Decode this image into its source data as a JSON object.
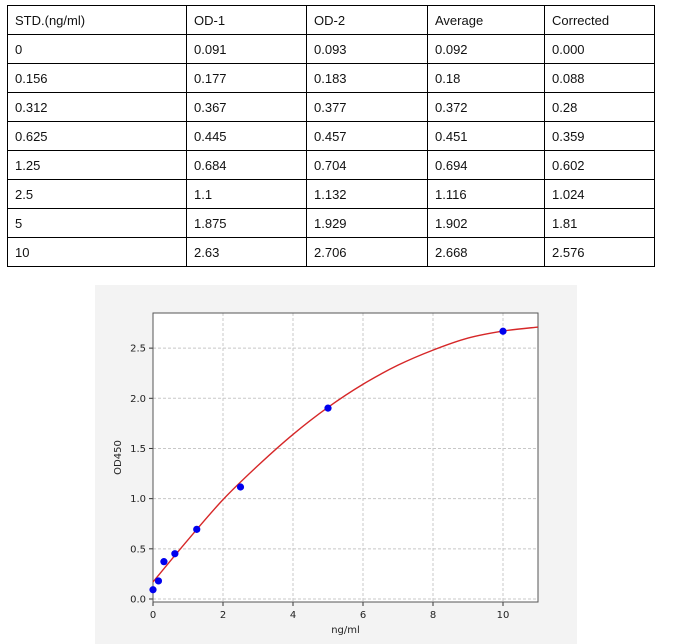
{
  "table": {
    "headers": [
      "STD.(ng/ml)",
      "OD-1",
      "OD-2",
      "Average",
      "Corrected"
    ],
    "rows": [
      [
        "0",
        "0.091",
        "0.093",
        "0.092",
        "0.000"
      ],
      [
        "0.156",
        "0.177",
        "0.183",
        "0.18",
        "0.088"
      ],
      [
        "0.312",
        "0.367",
        "0.377",
        "0.372",
        "0.28"
      ],
      [
        "0.625",
        "0.445",
        "0.457",
        "0.451",
        "0.359"
      ],
      [
        "1.25",
        "0.684",
        "0.704",
        "0.694",
        "0.602"
      ],
      [
        "2.5",
        "1.1",
        "1.132",
        "1.116",
        "1.024"
      ],
      [
        "5",
        "1.875",
        "1.929",
        "1.902",
        "1.81"
      ],
      [
        "10",
        "2.63",
        "2.706",
        "2.668",
        "2.576"
      ]
    ]
  },
  "chart_data": {
    "type": "scatter",
    "xlabel": "ng/ml",
    "ylabel": "OD450",
    "xlim": [
      0,
      11
    ],
    "ylim": [
      -0.03,
      2.85
    ],
    "xticks": [
      "0",
      "2",
      "4",
      "6",
      "8",
      "10"
    ],
    "yticks": [
      "0.0",
      "0.5",
      "1.0",
      "1.5",
      "2.0",
      "2.5"
    ],
    "grid": true,
    "points": {
      "x": [
        0,
        0.156,
        0.312,
        0.625,
        1.25,
        2.5,
        5,
        10
      ],
      "y": [
        0.092,
        0.18,
        0.372,
        0.451,
        0.694,
        1.116,
        1.902,
        2.668
      ],
      "color": "#0000ee"
    },
    "fit_curve": {
      "x": [
        0,
        1,
        2,
        3,
        4,
        5,
        6,
        7,
        8,
        9,
        10,
        11
      ],
      "y": [
        0.17,
        0.59,
        0.99,
        1.33,
        1.64,
        1.91,
        2.14,
        2.33,
        2.48,
        2.6,
        2.67,
        2.71
      ],
      "color": "#d62728"
    }
  }
}
